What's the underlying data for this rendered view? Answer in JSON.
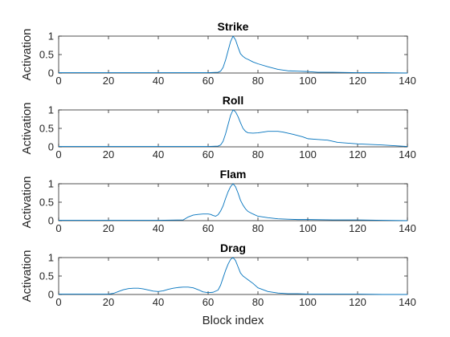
{
  "xlabel": "Block index",
  "colors": {
    "line": "#0072bd",
    "axis": "#262626",
    "background": "#ffffff"
  },
  "chart_data": [
    {
      "type": "line",
      "title": "Strike",
      "xlabel": "",
      "ylabel": "Activation",
      "xlim": [
        0,
        140
      ],
      "ylim": [
        0,
        1
      ],
      "xticks": [
        0,
        20,
        40,
        60,
        80,
        100,
        120,
        140
      ],
      "yticks": [
        0,
        0.5,
        1
      ],
      "grid": false,
      "series": [
        {
          "x": [
            0,
            20,
            40,
            60,
            64,
            65,
            66,
            67,
            68,
            69,
            70,
            71,
            72,
            73,
            74,
            75,
            76,
            78,
            80,
            84,
            88,
            92,
            96,
            100,
            104,
            110,
            120,
            130,
            140
          ],
          "values": [
            0.01,
            0.01,
            0.01,
            0.01,
            0.02,
            0.05,
            0.15,
            0.35,
            0.6,
            0.85,
            1.0,
            0.9,
            0.7,
            0.52,
            0.45,
            0.4,
            0.37,
            0.3,
            0.25,
            0.17,
            0.1,
            0.06,
            0.05,
            0.04,
            0.02,
            0.02,
            0.01,
            0.01,
            0.0
          ]
        }
      ]
    },
    {
      "type": "line",
      "title": "Roll",
      "xlabel": "",
      "ylabel": "Activation",
      "xlim": [
        0,
        140
      ],
      "ylim": [
        0,
        1
      ],
      "xticks": [
        0,
        20,
        40,
        60,
        80,
        100,
        120,
        140
      ],
      "yticks": [
        0,
        0.5,
        1
      ],
      "grid": false,
      "series": [
        {
          "x": [
            0,
            20,
            40,
            60,
            64,
            65,
            66,
            67,
            68,
            69,
            70,
            71,
            72,
            73,
            74,
            75,
            76,
            78,
            80,
            84,
            88,
            90,
            94,
            98,
            100,
            104,
            108,
            112,
            120,
            130,
            140
          ],
          "values": [
            0.01,
            0.01,
            0.01,
            0.01,
            0.02,
            0.05,
            0.15,
            0.35,
            0.6,
            0.85,
            1.0,
            0.95,
            0.82,
            0.65,
            0.5,
            0.42,
            0.38,
            0.37,
            0.38,
            0.42,
            0.42,
            0.4,
            0.34,
            0.27,
            0.22,
            0.2,
            0.18,
            0.12,
            0.08,
            0.05,
            0.01
          ]
        }
      ]
    },
    {
      "type": "line",
      "title": "Flam",
      "xlabel": "",
      "ylabel": "Activation",
      "xlim": [
        0,
        140
      ],
      "ylim": [
        0,
        1
      ],
      "xticks": [
        0,
        20,
        40,
        60,
        80,
        100,
        120,
        140
      ],
      "yticks": [
        0,
        0.5,
        1
      ],
      "grid": false,
      "series": [
        {
          "x": [
            0,
            20,
            40,
            50,
            52,
            54,
            56,
            58,
            60,
            61,
            62,
            63,
            64,
            65,
            66,
            67,
            68,
            69,
            70,
            71,
            72,
            73,
            74,
            75,
            76,
            78,
            80,
            84,
            88,
            92,
            96,
            100,
            110,
            120,
            130,
            140
          ],
          "values": [
            0.01,
            0.01,
            0.01,
            0.02,
            0.1,
            0.15,
            0.17,
            0.18,
            0.18,
            0.17,
            0.14,
            0.12,
            0.16,
            0.26,
            0.4,
            0.6,
            0.78,
            0.92,
            1.0,
            0.92,
            0.75,
            0.55,
            0.42,
            0.32,
            0.25,
            0.18,
            0.12,
            0.08,
            0.05,
            0.04,
            0.03,
            0.03,
            0.02,
            0.02,
            0.01,
            0.0
          ]
        }
      ]
    },
    {
      "type": "line",
      "title": "Drag",
      "xlabel": "Block index",
      "ylabel": "Activation",
      "xlim": [
        0,
        140
      ],
      "ylim": [
        0,
        1
      ],
      "xticks": [
        0,
        20,
        40,
        60,
        80,
        100,
        120,
        140
      ],
      "yticks": [
        0,
        0.5,
        1
      ],
      "grid": false,
      "series": [
        {
          "x": [
            0,
            20,
            22,
            24,
            26,
            28,
            30,
            32,
            34,
            36,
            38,
            40,
            42,
            44,
            46,
            48,
            50,
            52,
            54,
            56,
            58,
            60,
            62,
            64,
            65,
            66,
            67,
            68,
            69,
            70,
            71,
            72,
            73,
            74,
            75,
            76,
            78,
            80,
            84,
            88,
            92,
            96,
            100,
            110,
            120,
            130,
            140
          ],
          "values": [
            0.01,
            0.01,
            0.03,
            0.08,
            0.13,
            0.16,
            0.17,
            0.17,
            0.15,
            0.12,
            0.09,
            0.08,
            0.1,
            0.14,
            0.17,
            0.19,
            0.2,
            0.2,
            0.18,
            0.13,
            0.07,
            0.05,
            0.06,
            0.12,
            0.25,
            0.45,
            0.65,
            0.82,
            0.95,
            1.0,
            0.92,
            0.75,
            0.58,
            0.5,
            0.45,
            0.4,
            0.3,
            0.18,
            0.08,
            0.04,
            0.02,
            0.02,
            0.01,
            0.01,
            0.01,
            0.0,
            0.0
          ]
        }
      ]
    }
  ]
}
